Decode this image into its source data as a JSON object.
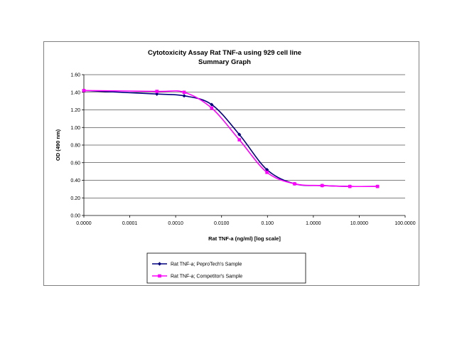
{
  "chart_data": {
    "type": "line",
    "title": "Cytotoxicity Assay Rat TNF-a using 929 cell line",
    "subtitle": "Summary Graph",
    "xlabel": "Rat TNF-a (ng/ml) [log scale]",
    "ylabel": "OD (490 nm)",
    "x_scale": "log",
    "x_ticks": [
      1e-05,
      0.0001,
      0.001,
      0.01,
      0.1,
      1,
      10,
      100
    ],
    "x_tick_labels": [
      "0.0000",
      "0.0001",
      "0.0010",
      "0.0100",
      "0.100",
      "1.0000",
      "10.0000",
      "100.0000"
    ],
    "xlim": [
      1e-05,
      100
    ],
    "ylim": [
      0,
      1.6
    ],
    "y_ticks": [
      0,
      0.2,
      0.4,
      0.6,
      0.8,
      1.0,
      1.2,
      1.4,
      1.6
    ],
    "y_tick_labels": [
      "0.00",
      "0.20",
      "0.40",
      "0.60",
      "0.80",
      "1.00",
      "1.20",
      "1.40",
      "1.60"
    ],
    "grid": true,
    "legend_position": "bottom",
    "series": [
      {
        "name": "Rat TNF-a; PeproTech's Sample",
        "color": "#000080",
        "marker": "diamond",
        "x": [
          1e-05,
          0.00039,
          0.00153,
          0.0061,
          0.0244,
          0.0977,
          0.39,
          1.56,
          6.25,
          25
        ],
        "y": [
          1.42,
          1.38,
          1.36,
          1.26,
          0.92,
          0.52,
          0.36,
          0.34,
          0.33,
          0.33
        ]
      },
      {
        "name": "Rat TNF-a; Competitor's Sample",
        "color": "#ff00ff",
        "marker": "square",
        "x": [
          1e-05,
          0.00039,
          0.00153,
          0.0061,
          0.0244,
          0.0977,
          0.39,
          1.56,
          6.25,
          25
        ],
        "y": [
          1.42,
          1.41,
          1.4,
          1.22,
          0.86,
          0.49,
          0.36,
          0.34,
          0.33,
          0.33
        ]
      }
    ]
  }
}
